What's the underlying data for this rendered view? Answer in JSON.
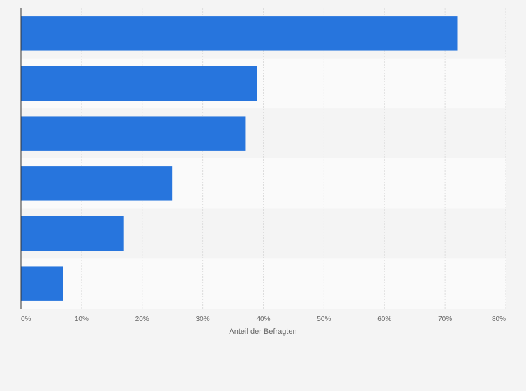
{
  "chart_data": {
    "type": "bar",
    "orientation": "horizontal",
    "title": "",
    "xlabel": "Anteil der Befragten",
    "ylabel": "",
    "categories": [
      "",
      "",
      "",
      "",
      "",
      ""
    ],
    "values": [
      72,
      39,
      37,
      25,
      17,
      7
    ],
    "xlim": [
      0,
      80
    ],
    "x_ticks": [
      0,
      10,
      20,
      30,
      40,
      50,
      60,
      70,
      80
    ],
    "x_tick_labels": [
      "0%",
      "10%",
      "20%",
      "30%",
      "40%",
      "50%",
      "60%",
      "70%",
      "80%"
    ],
    "grid": true,
    "legend": "none",
    "colors": {
      "bar": "#2775dd",
      "band_a": "#f4f4f4",
      "band_b": "#fafafa",
      "grid": "#dddddd",
      "axis": "#333333"
    }
  }
}
